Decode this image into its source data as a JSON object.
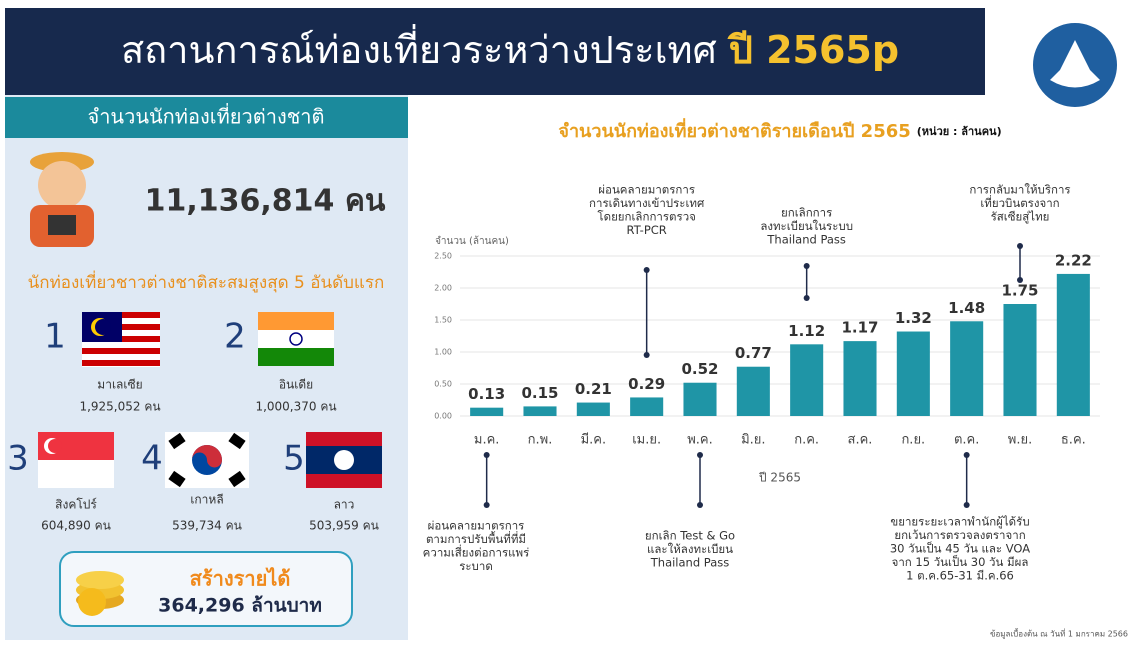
{
  "header": {
    "title": "สถานการณ์ท่องเที่ยวระหว่างประเทศ",
    "title_year": "ปี 2565p"
  },
  "panel": {
    "heading": "จำนวนนักท่องเที่ยวต่างชาติ",
    "total": "11,136,814 คน",
    "top_heading": "นักท่องเที่ยวชาวต่างชาติสะสมสูงสุด 5 อันดับแรก",
    "countries": [
      {
        "rank": 1,
        "name": "มาเลเซีย",
        "value": "1,925,052 คน"
      },
      {
        "rank": 2,
        "name": "อินเดีย",
        "value": "1,000,370 คน"
      },
      {
        "rank": 3,
        "name": "สิงคโปร์",
        "value": "604,890 คน"
      },
      {
        "rank": 4,
        "name": "เกาหลี",
        "value": "539,734 คน"
      },
      {
        "rank": 5,
        "name": "ลาว",
        "value": "503,959 คน"
      }
    ],
    "income_label": "สร้างรายได้",
    "income": "364,296 ล้านบาท"
  },
  "chart_data": {
    "type": "bar",
    "title": "จำนวนนักท่องเที่ยวต่างชาติรายเดือนปี 2565",
    "unit": "(หน่วย : ล้านคน)",
    "y_label": "จำนวน (ล้านคน)",
    "x_label": "ปี 2565",
    "categories": [
      "ม.ค.",
      "ก.พ.",
      "มี.ค.",
      "เม.ย.",
      "พ.ค.",
      "มิ.ย.",
      "ก.ค.",
      "ส.ค.",
      "ก.ย.",
      "ต.ค.",
      "พ.ย.",
      "ธ.ค."
    ],
    "values": [
      0.13,
      0.15,
      0.21,
      0.29,
      0.52,
      0.77,
      1.12,
      1.17,
      1.32,
      1.48,
      1.75,
      2.22
    ],
    "color": "#1f95a6",
    "grid": true,
    "ylim": [
      0,
      2.5
    ],
    "yticks": [
      {
        "value": 0,
        "label": "0.00"
      },
      {
        "value": 0.5,
        "label": "0.50"
      },
      {
        "value": 1,
        "label": "1.00"
      },
      {
        "value": 1.5,
        "label": "1.50"
      },
      {
        "value": 2,
        "label": "2.00"
      },
      {
        "value": 2.5,
        "label": "2.50"
      }
    ],
    "annotations": [
      {
        "lines": [
          "ผ่อนคลายมาตรการ",
          "การเดินทางเข้าประเทศ",
          "โดยยกเลิกการตรวจ",
          "RT-PCR"
        ]
      },
      {
        "lines": [
          "ยกเลิกการ",
          "ลงทะเบียนในระบบ",
          "Thailand Pass"
        ]
      },
      {
        "lines": [
          "การกลับมาให้บริการ",
          "เที่ยวบินตรงจาก",
          "รัสเซียสู่ไทย"
        ]
      },
      {
        "lines": [
          "ผ่อนคลายมาตรการ",
          "ตามการปรับพื้นที่ที่มี",
          "ความเสี่ยงต่อการแพร่",
          "ระบาด"
        ]
      },
      {
        "lines": [
          "ยกเลิก Test & Go",
          "และให้ลงทะเบียน",
          "Thailand Pass"
        ]
      },
      {
        "lines": [
          "ขยายระยะเวลาพำนักผู้ได้รับ",
          "ยกเว้นการตรวจลงตราจาก",
          "30 วันเป็น 45 วัน และ VOA",
          "จาก 15 วันเป็น 30 วัน มีผล",
          "1 ต.ค.65-31 มี.ค.66"
        ]
      }
    ],
    "note": "ข้อมูลเบื้องต้น ณ วันที่ 1 มกราคม 2566"
  }
}
